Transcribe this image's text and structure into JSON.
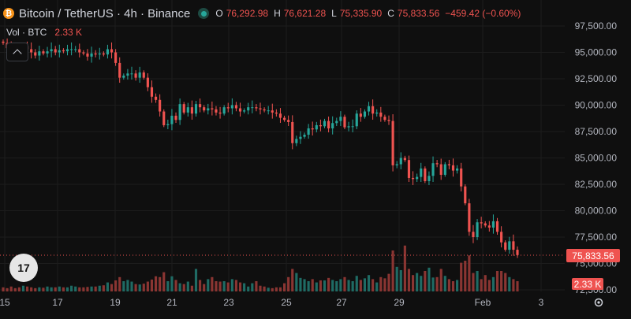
{
  "header": {
    "logo_glyph": "₿",
    "symbol": "Bitcoin / TetherUS · 4h · Binance",
    "ohlc": {
      "o_label": "O",
      "o": "76,292.98",
      "h_label": "H",
      "h": "76,621.28",
      "l_label": "L",
      "l": "75,335.90",
      "c_label": "C",
      "c": "75,833.56",
      "change": "−459.42 (−0.60%)"
    },
    "down_color": "#ef5350",
    "up_color": "#26a69a"
  },
  "volume_legend": {
    "label": "Vol · BTC",
    "value": "2.33 K"
  },
  "price_axis": {
    "labels": [
      "97,500.00",
      "95,000.00",
      "92,500.00",
      "90,000.00",
      "87,500.00",
      "85,000.00",
      "82,500.00",
      "80,000.00",
      "77,500.00",
      "75,000.00",
      "72,500.00"
    ],
    "current_price": "75,833.56",
    "current_volume": "2.33 K"
  },
  "time_axis": {
    "labels": [
      "15",
      "17",
      "19",
      "21",
      "23",
      "25",
      "27",
      "29",
      "Feb",
      "3"
    ]
  },
  "icons": {
    "collapse": "chevron-up-icon",
    "brand": "tradingview-logo",
    "brand_text": "17",
    "settings": "gear-icon"
  },
  "chart_data": {
    "type": "candlestick",
    "symbol": "BTCUSDT",
    "ylim": [
      72500,
      97500
    ],
    "candles_close": [
      95900,
      95400,
      95200,
      95000,
      94800,
      95600,
      95300,
      95000,
      94700,
      95100,
      94900,
      95100,
      95300,
      95000,
      95200,
      95100,
      95300,
      95300,
      95300,
      95000,
      94900,
      94600,
      94900,
      94800,
      94900,
      94800,
      95300,
      95000,
      94000,
      92600,
      92800,
      93000,
      93000,
      92600,
      93100,
      92600,
      91700,
      90800,
      90500,
      89400,
      88100,
      88200,
      89000,
      88600,
      90100,
      89300,
      89800,
      89200,
      90100,
      89800,
      89500,
      89700,
      89600,
      89300,
      89200,
      89800,
      89700,
      90000,
      89700,
      89400,
      89500,
      89800,
      89800,
      89700,
      89600,
      89500,
      89500,
      89300,
      89200,
      88800,
      88600,
      88400,
      86400,
      86800,
      87000,
      87200,
      87800,
      87700,
      88100,
      88000,
      88500,
      87800,
      88300,
      88500,
      88900,
      87900,
      88000,
      88000,
      89200,
      88900,
      89400,
      89900,
      89200,
      89300,
      88900,
      88600,
      88500,
      84300,
      84400,
      85000,
      84800,
      83100,
      83000,
      83200,
      84000,
      82800,
      83300,
      84500,
      84400,
      83400,
      84400,
      84300,
      83800,
      84000,
      82300,
      80700,
      78000,
      77500,
      78900,
      78800,
      78600,
      78400,
      79000,
      78000,
      77000,
      76300,
      77100,
      76300,
      75800
    ],
    "volume_relative": [
      0.1,
      0.08,
      0.12,
      0.08,
      0.1,
      0.14,
      0.12,
      0.1,
      0.08,
      0.1,
      0.09,
      0.12,
      0.1,
      0.1,
      0.12,
      0.1,
      0.1,
      0.14,
      0.12,
      0.1,
      0.1,
      0.11,
      0.12,
      0.12,
      0.14,
      0.15,
      0.22,
      0.18,
      0.27,
      0.35,
      0.25,
      0.28,
      0.24,
      0.18,
      0.17,
      0.19,
      0.24,
      0.29,
      0.37,
      0.35,
      0.47,
      0.25,
      0.37,
      0.28,
      0.2,
      0.18,
      0.24,
      0.14,
      0.55,
      0.28,
      0.18,
      0.3,
      0.35,
      0.25,
      0.24,
      0.25,
      0.22,
      0.3,
      0.28,
      0.22,
      0.2,
      0.12,
      0.2,
      0.25,
      0.14,
      0.12,
      0.09,
      0.08,
      0.1,
      0.1,
      0.2,
      0.35,
      0.55,
      0.45,
      0.33,
      0.3,
      0.25,
      0.3,
      0.22,
      0.27,
      0.27,
      0.33,
      0.28,
      0.25,
      0.3,
      0.35,
      0.28,
      0.25,
      0.38,
      0.28,
      0.32,
      0.4,
      0.3,
      0.22,
      0.35,
      0.32,
      0.43,
      1.0,
      0.6,
      0.52,
      1.12,
      0.55,
      0.4,
      0.45,
      0.38,
      0.5,
      0.58,
      0.34,
      0.35,
      0.55,
      0.38,
      0.3,
      0.25,
      0.28,
      0.7,
      0.75,
      0.88,
      0.45,
      0.5,
      0.3,
      0.4,
      0.28,
      0.35,
      0.5,
      0.5,
      0.45,
      0.35,
      0.3,
      0.25
    ]
  }
}
